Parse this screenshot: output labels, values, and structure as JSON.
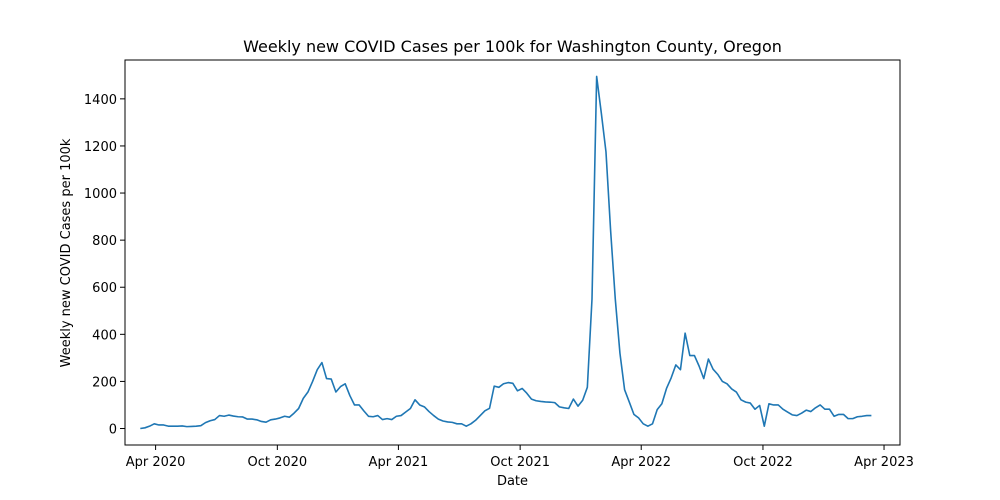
{
  "chart_data": {
    "type": "line",
    "title": "Weekly new COVID Cases per 100k for Washington County, Oregon",
    "xlabel": "Date",
    "ylabel": "Weekly new COVID Cases per 100k",
    "x_ticks": [
      {
        "date": "2020-04-01",
        "label": "Apr 2020"
      },
      {
        "date": "2020-10-01",
        "label": "Oct 2020"
      },
      {
        "date": "2021-04-01",
        "label": "Apr 2021"
      },
      {
        "date": "2021-10-01",
        "label": "Oct 2021"
      },
      {
        "date": "2022-04-01",
        "label": "Apr 2022"
      },
      {
        "date": "2022-10-01",
        "label": "Oct 2022"
      },
      {
        "date": "2023-04-01",
        "label": "Apr 2023"
      }
    ],
    "y_ticks": [
      0,
      200,
      400,
      600,
      800,
      1000,
      1200,
      1400
    ],
    "xlim": [
      "2020-02-15",
      "2023-04-25"
    ],
    "ylim": [
      -70,
      1565
    ],
    "grid": false,
    "line_color": "#1f77b4",
    "series": [
      {
        "x": [
          "2020-03-09",
          "2020-03-16",
          "2020-03-23",
          "2020-03-30",
          "2020-04-06",
          "2020-04-13",
          "2020-04-20",
          "2020-04-27",
          "2020-05-04",
          "2020-05-11",
          "2020-05-18",
          "2020-05-25",
          "2020-06-01",
          "2020-06-08",
          "2020-06-15",
          "2020-06-22",
          "2020-06-29",
          "2020-07-06",
          "2020-07-13",
          "2020-07-20",
          "2020-07-27",
          "2020-08-03",
          "2020-08-10",
          "2020-08-17",
          "2020-08-24",
          "2020-08-31",
          "2020-09-07",
          "2020-09-14",
          "2020-09-21",
          "2020-09-28",
          "2020-10-05",
          "2020-10-12",
          "2020-10-19",
          "2020-10-26",
          "2020-11-02",
          "2020-11-09",
          "2020-11-16",
          "2020-11-23",
          "2020-11-30",
          "2020-12-07",
          "2020-12-14",
          "2020-12-21",
          "2020-12-28",
          "2021-01-04",
          "2021-01-11",
          "2021-01-18",
          "2021-01-25",
          "2021-02-01",
          "2021-02-08",
          "2021-02-15",
          "2021-02-22",
          "2021-03-01",
          "2021-03-08",
          "2021-03-15",
          "2021-03-22",
          "2021-03-29",
          "2021-04-05",
          "2021-04-12",
          "2021-04-19",
          "2021-04-26",
          "2021-05-03",
          "2021-05-10",
          "2021-05-17",
          "2021-05-24",
          "2021-05-31",
          "2021-06-07",
          "2021-06-14",
          "2021-06-21",
          "2021-06-28",
          "2021-07-05",
          "2021-07-12",
          "2021-07-19",
          "2021-07-26",
          "2021-08-02",
          "2021-08-09",
          "2021-08-16",
          "2021-08-23",
          "2021-08-30",
          "2021-09-06",
          "2021-09-13",
          "2021-09-20",
          "2021-09-27",
          "2021-10-04",
          "2021-10-11",
          "2021-10-18",
          "2021-10-25",
          "2021-11-01",
          "2021-11-08",
          "2021-11-15",
          "2021-11-22",
          "2021-11-29",
          "2021-12-06",
          "2021-12-13",
          "2021-12-20",
          "2021-12-27",
          "2022-01-03",
          "2022-01-10",
          "2022-01-17",
          "2022-01-24",
          "2022-01-31",
          "2022-02-07",
          "2022-02-14",
          "2022-02-21",
          "2022-02-28",
          "2022-03-07",
          "2022-03-14",
          "2022-03-21",
          "2022-03-28",
          "2022-04-04",
          "2022-04-11",
          "2022-04-18",
          "2022-04-25",
          "2022-05-02",
          "2022-05-09",
          "2022-05-16",
          "2022-05-23",
          "2022-05-30",
          "2022-06-06",
          "2022-06-13",
          "2022-06-20",
          "2022-06-27",
          "2022-07-04",
          "2022-07-11",
          "2022-07-18",
          "2022-07-25",
          "2022-08-01",
          "2022-08-08",
          "2022-08-15",
          "2022-08-22",
          "2022-08-29",
          "2022-09-05",
          "2022-09-12",
          "2022-09-19",
          "2022-09-26",
          "2022-10-03",
          "2022-10-10",
          "2022-10-17",
          "2022-10-24",
          "2022-10-31",
          "2022-11-07",
          "2022-11-14",
          "2022-11-21",
          "2022-11-28",
          "2022-12-05",
          "2022-12-12",
          "2022-12-19",
          "2022-12-26",
          "2023-01-02",
          "2023-01-09",
          "2023-01-16",
          "2023-01-23",
          "2023-01-30",
          "2023-02-06",
          "2023-02-13",
          "2023-02-20",
          "2023-02-27",
          "2023-03-06",
          "2023-03-13"
        ],
        "y": [
          0,
          3,
          10,
          20,
          15,
          15,
          10,
          10,
          10,
          11,
          8,
          9,
          10,
          12,
          25,
          33,
          38,
          55,
          52,
          57,
          53,
          50,
          49,
          40,
          40,
          37,
          30,
          27,
          37,
          40,
          45,
          52,
          48,
          65,
          85,
          128,
          155,
          200,
          250,
          280,
          212,
          210,
          155,
          178,
          190,
          140,
          100,
          100,
          75,
          52,
          50,
          55,
          38,
          42,
          38,
          52,
          55,
          70,
          85,
          122,
          100,
          92,
          72,
          55,
          40,
          32,
          28,
          26,
          20,
          20,
          10,
          20,
          35,
          55,
          75,
          86,
          180,
          175,
          190,
          195,
          192,
          160,
          170,
          150,
          125,
          118,
          115,
          113,
          112,
          110,
          92,
          88,
          85,
          125,
          95,
          120,
          175,
          550,
          1495,
          1340,
          1175,
          840,
          550,
          320,
          165,
          113,
          60,
          45,
          20,
          10,
          20,
          80,
          105,
          170,
          215,
          270,
          250,
          405,
          310,
          310,
          265,
          212,
          295,
          252,
          230,
          200,
          190,
          168,
          155,
          122,
          112,
          108,
          82,
          98,
          10,
          105,
          100,
          100,
          82,
          70,
          58,
          55,
          65,
          78,
          72,
          88,
          100,
          82,
          82,
          52,
          60,
          60,
          42,
          42,
          50,
          52,
          55,
          55
        ]
      }
    ]
  }
}
